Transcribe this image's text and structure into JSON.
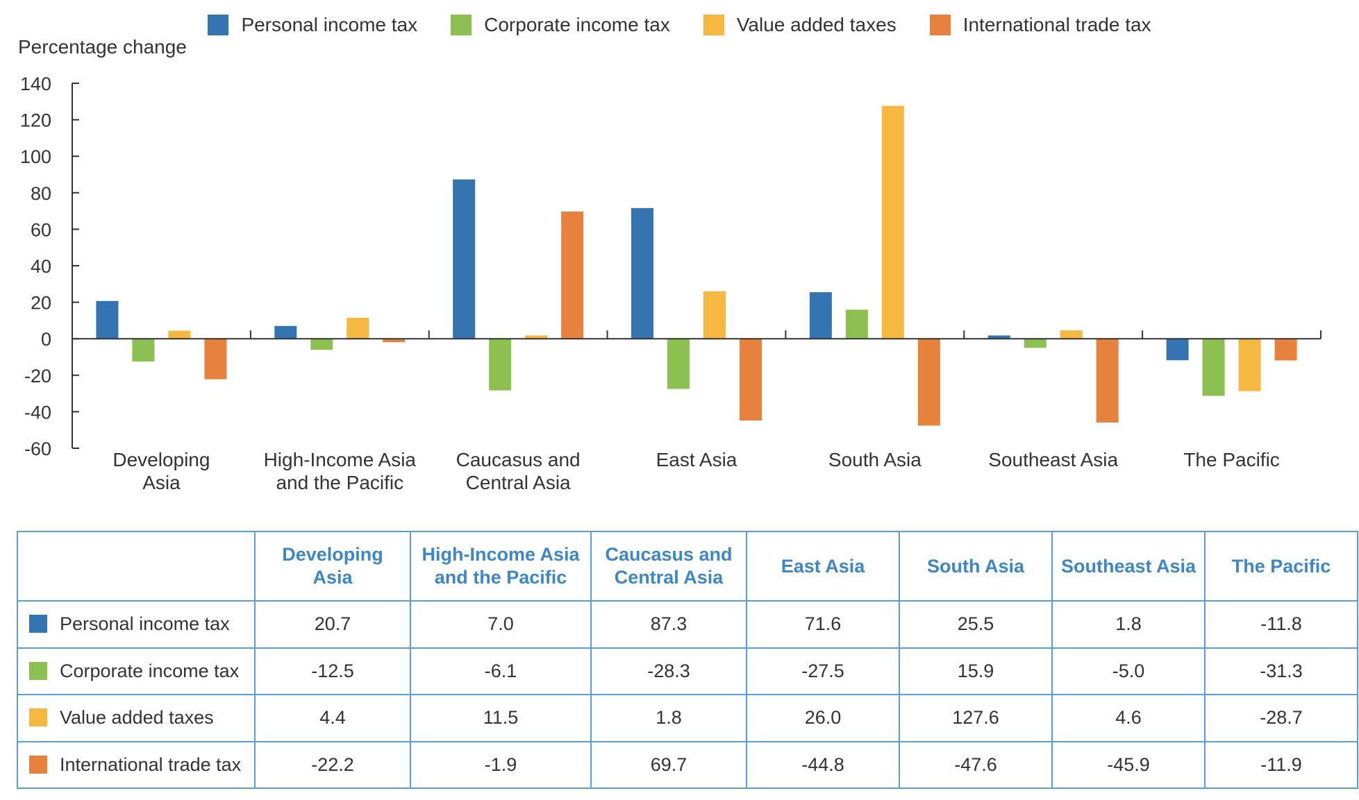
{
  "chart_data": {
    "type": "bar",
    "ylabel": "Percentage change",
    "ylim": [
      -60,
      140
    ],
    "yticks": [
      140,
      120,
      100,
      80,
      60,
      40,
      20,
      0,
      -20,
      -40,
      -60
    ],
    "legend_position": "top-center",
    "grid": false,
    "categories": [
      [
        "Developing",
        "Asia"
      ],
      [
        "High-Income Asia",
        "and the Pacific"
      ],
      [
        "Caucasus and",
        "Central Asia"
      ],
      [
        "East Asia"
      ],
      [
        "South Asia"
      ],
      [
        "Southeast Asia"
      ],
      [
        "The Pacific"
      ]
    ],
    "series": [
      {
        "name": "Personal income tax",
        "color": "#3474b1",
        "values": [
          20.7,
          7.0,
          87.3,
          71.6,
          25.5,
          1.8,
          -11.8
        ]
      },
      {
        "name": "Corporate income tax",
        "color": "#8cc152",
        "values": [
          -12.5,
          -6.1,
          -28.3,
          -27.5,
          15.9,
          -5.0,
          -31.3
        ]
      },
      {
        "name": "Value added taxes",
        "color": "#f5b841",
        "values": [
          4.4,
          11.5,
          1.8,
          26.0,
          127.6,
          4.6,
          -28.7
        ]
      },
      {
        "name": "International trade tax",
        "color": "#e6813e",
        "values": [
          -22.2,
          -1.9,
          69.7,
          -44.8,
          -47.6,
          -45.9,
          -11.9
        ]
      }
    ]
  },
  "table": {
    "headers": [
      [
        "Developing",
        "Asia"
      ],
      [
        "High-Income Asia",
        "and the Pacific"
      ],
      [
        "Caucasus and",
        "Central Asia"
      ],
      [
        "East Asia"
      ],
      [
        "South Asia"
      ],
      [
        "Southeast Asia"
      ],
      [
        "The Pacific"
      ]
    ],
    "rows": [
      {
        "label": "Personal income tax",
        "color": "#3474b1",
        "cells": [
          "20.7",
          "7.0",
          "87.3",
          "71.6",
          "25.5",
          "1.8",
          "-11.8"
        ]
      },
      {
        "label": "Corporate income tax",
        "color": "#8cc152",
        "cells": [
          "-12.5",
          "-6.1",
          "-28.3",
          "-27.5",
          "15.9",
          "-5.0",
          "-31.3"
        ]
      },
      {
        "label": "Value added taxes",
        "color": "#f5b841",
        "cells": [
          "4.4",
          "11.5",
          "1.8",
          "26.0",
          "127.6",
          "4.6",
          "-28.7"
        ]
      },
      {
        "label": "International trade tax",
        "color": "#e6813e",
        "cells": [
          "-22.2",
          "-1.9",
          "69.7",
          "-44.8",
          "-47.6",
          "-45.9",
          "-11.9"
        ]
      }
    ]
  }
}
